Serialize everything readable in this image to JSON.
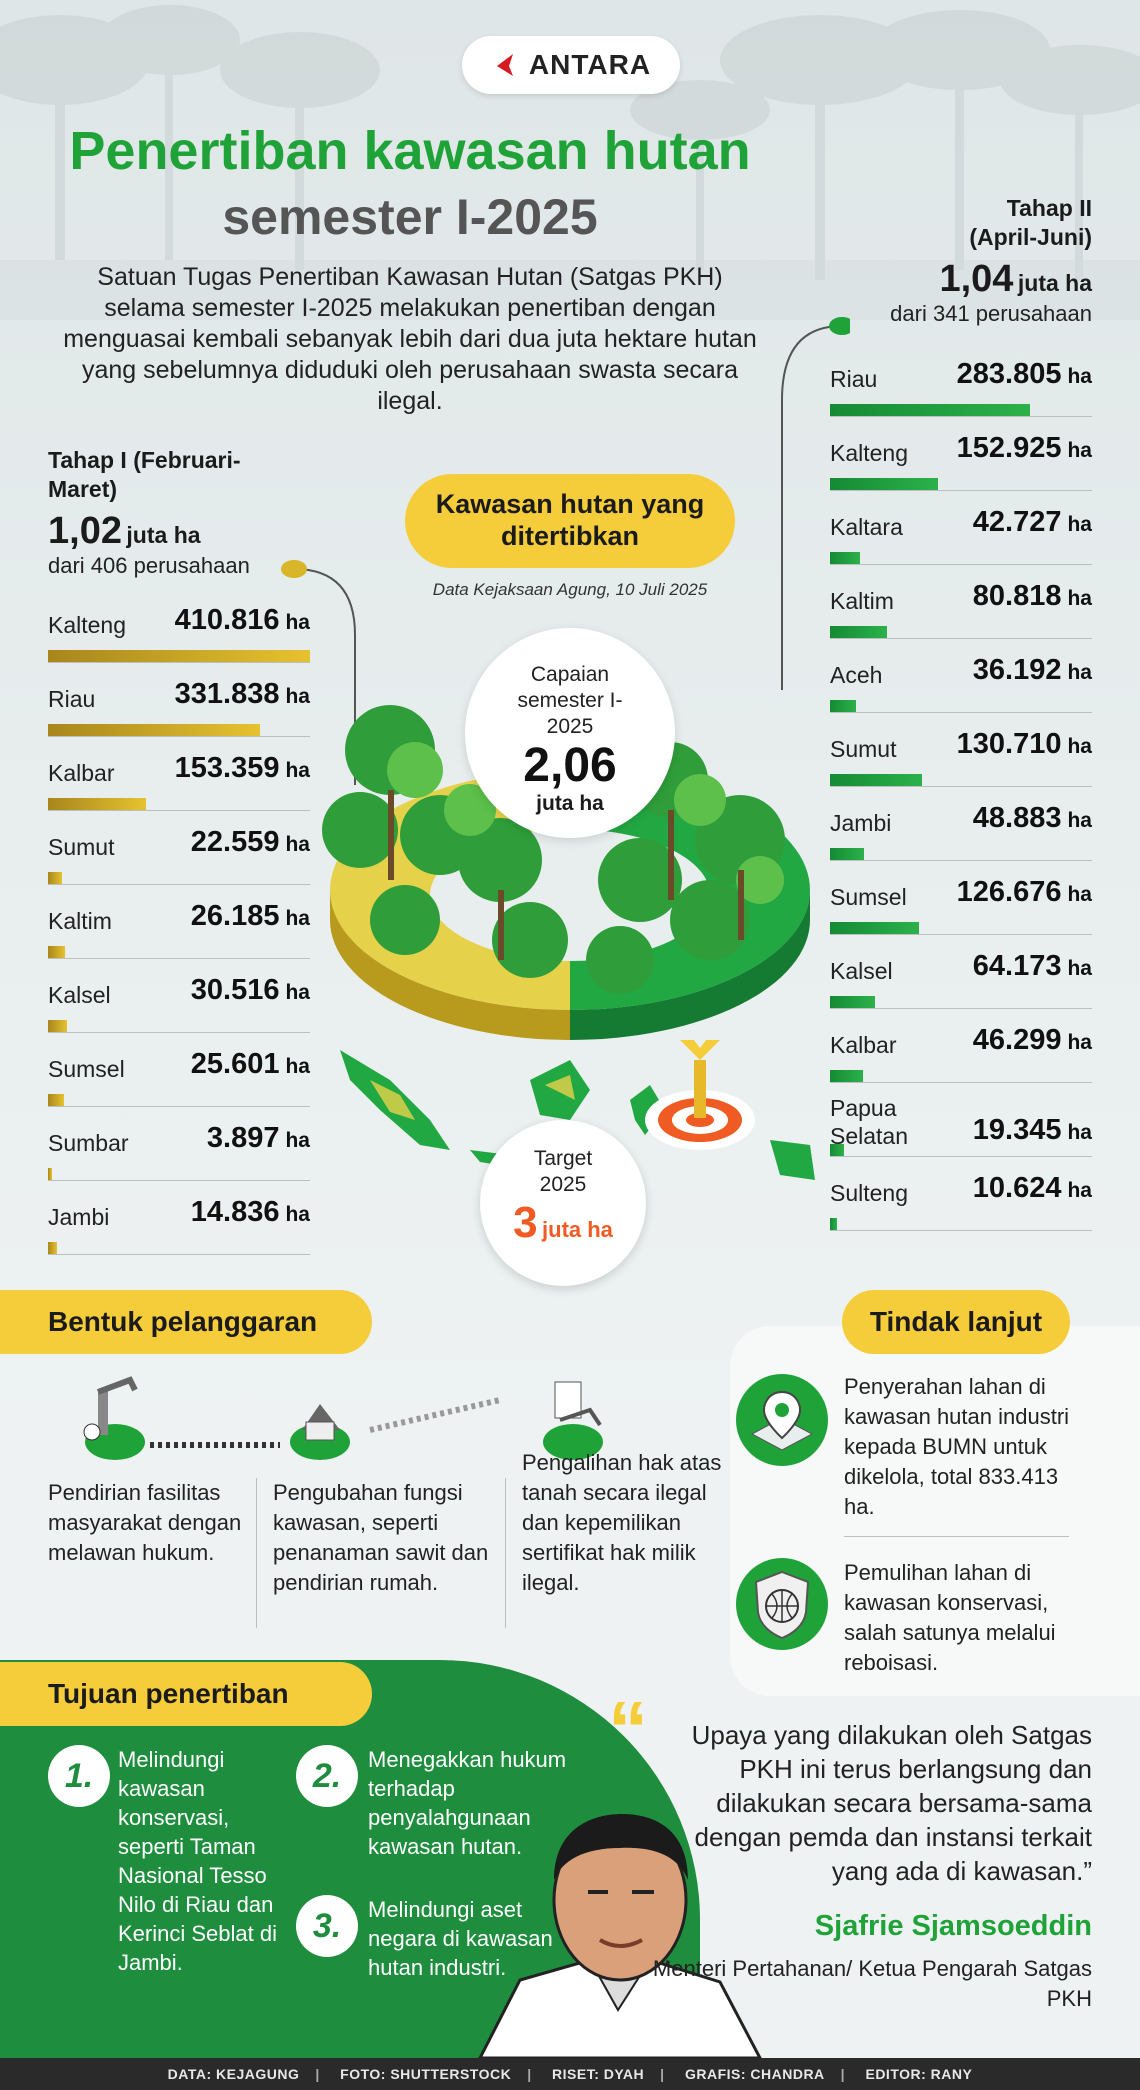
{
  "brand": {
    "logo_text": "ANTARA"
  },
  "title": {
    "line1": "Penertiban kawasan hutan",
    "line2": "semester I-2025"
  },
  "intro": "Satuan Tugas Penertiban Kawasan Hutan (Satgas PKH) selama semester I-2025 melakukan penertiban dengan menguasai kembali sebanyak lebih dari dua juta hektare hutan yang sebelumnya diduduki oleh perusahaan swasta secara ilegal.",
  "center": {
    "pill": "Kawasan hutan yang ditertibkan",
    "source": "Data Kejaksaan Agung, 10 Juli 2025",
    "achievement_label": "Capaian semester I-2025",
    "achievement_value": "2,06",
    "achievement_unit": "juta ha",
    "target_label": "Target 2025",
    "target_value": "3",
    "target_unit": "juta ha"
  },
  "colors": {
    "green": "#1fa339",
    "dark_green": "#1e8e3e",
    "yellow": "#f5cd3b",
    "gold_bar": "#c9a227",
    "orange": "#f05a23"
  },
  "chart_data": [
    {
      "type": "bar",
      "title": "Tahap I (Februari-Maret)",
      "total": "1,02",
      "total_unit": "juta ha",
      "subtitle": "dari 406 perusahaan",
      "unit": "ha",
      "categories": [
        "Kalteng",
        "Riau",
        "Kalbar",
        "Sumut",
        "Kaltim",
        "Kalsel",
        "Sumsel",
        "Sumbar",
        "Jambi"
      ],
      "labels": [
        "410.816",
        "331.838",
        "153.359",
        "22.559",
        "26.185",
        "30.516",
        "25.601",
        "3.897",
        "14.836"
      ],
      "values": [
        410816,
        331838,
        153359,
        22559,
        26185,
        30516,
        25601,
        3897,
        14836
      ]
    },
    {
      "type": "bar",
      "title": "Tahap II (April-Juni)",
      "total": "1,04",
      "total_unit": "juta ha",
      "subtitle": "dari 341 perusahaan",
      "unit": "ha",
      "categories": [
        "Riau",
        "Kalteng",
        "Kaltara",
        "Kaltim",
        "Aceh",
        "Sumut",
        "Jambi",
        "Sumsel",
        "Kalsel",
        "Kalbar",
        "Papua Selatan",
        "Sulteng"
      ],
      "labels": [
        "283.805",
        "152.925",
        "42.727",
        "80.818",
        "36.192",
        "130.710",
        "48.883",
        "126.676",
        "64.173",
        "46.299",
        "19.345",
        "10.624"
      ],
      "values": [
        283805,
        152925,
        42727,
        80818,
        36192,
        130710,
        48883,
        126676,
        64173,
        46299,
        19345,
        10624
      ]
    }
  ],
  "violations": {
    "title": "Bentuk pelanggaran",
    "items": [
      "Pendirian fasilitas masyarakat dengan melawan hukum.",
      "Pengubahan fungsi kawasan, seperti penanaman sawit dan pendirian rumah.",
      "Pengalihan hak atas tanah secara ilegal dan kepemilikan sertifikat hak milik ilegal."
    ]
  },
  "followup": {
    "title": "Tindak lanjut",
    "items": [
      "Penyerahan lahan di kawasan hutan industri kepada BUMN untuk dikelola, total 833.413 ha.",
      "Pemulihan lahan di kawasan konservasi, salah satunya melalui reboisasi."
    ]
  },
  "goals": {
    "title": "Tujuan penertiban",
    "items": [
      {
        "num": "1.",
        "text": "Melindungi kawasan konservasi, seperti Taman Nasional Tesso Nilo di Riau dan Kerinci Seblat di Jambi."
      },
      {
        "num": "2.",
        "text": "Menegakkan hukum terhadap penyalahgunaan kawasan hutan."
      },
      {
        "num": "3.",
        "text": "Melindungi aset negara di kawasan hutan industri."
      }
    ]
  },
  "quote": {
    "mark": "“",
    "text": "Upaya yang dilakukan oleh Satgas PKH ini terus berlangsung dan dilakukan secara bersama-sama dengan pemda dan instansi terkait yang ada di kawasan.”",
    "name": "Sjafrie Sjamsoeddin",
    "role": "Menteri Pertahanan/ Ketua Pengarah Satgas PKH"
  },
  "footer": [
    "DATA: KEJAGUNG",
    "FOTO: SHUTTERSTOCK",
    "RISET: DYAH",
    "GRAFIS: CHANDRA",
    "EDITOR: RANY"
  ]
}
